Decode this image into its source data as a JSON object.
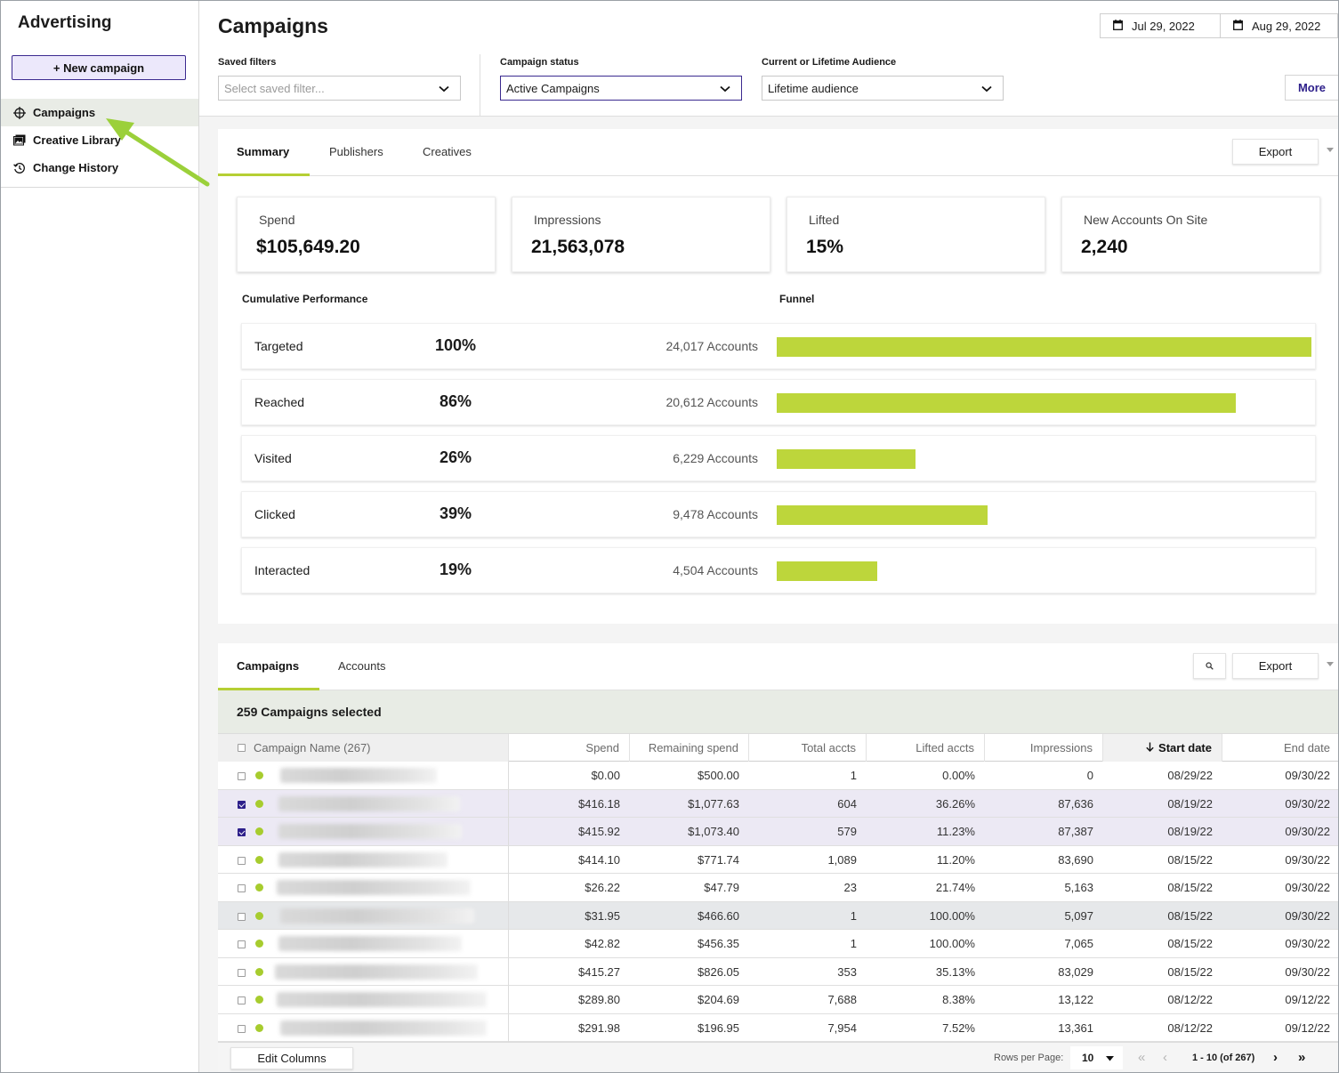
{
  "sidebar": {
    "brand": "Advertising",
    "new_campaign_label": "+ New campaign",
    "items": [
      {
        "label": "Campaigns",
        "icon": "crosshair-icon",
        "active": true
      },
      {
        "label": "Creative Library",
        "icon": "image-library-icon",
        "active": false
      },
      {
        "label": "Change History",
        "icon": "history-icon",
        "active": false
      }
    ]
  },
  "header": {
    "title": "Campaigns",
    "date_start": "Jul 29, 2022",
    "date_end": "Aug 29, 2022",
    "filters": {
      "saved_label": "Saved filters",
      "saved_placeholder": "Select saved filter...",
      "status_label": "Campaign status",
      "status_value": "Active Campaigns",
      "audience_label": "Current or Lifetime Audience",
      "audience_value": "Lifetime audience"
    },
    "more_label": "More"
  },
  "summary": {
    "tabs": [
      "Summary",
      "Publishers",
      "Creatives"
    ],
    "export_label": "Export",
    "stats": [
      {
        "label": "Spend",
        "value": "$105,649.20"
      },
      {
        "label": "Impressions",
        "value": "21,563,078"
      },
      {
        "label": "Lifted",
        "value": "15%"
      },
      {
        "label": "New Accounts On Site",
        "value": "2,240"
      }
    ],
    "cumulative_heading": "Cumulative Performance",
    "funnel_heading": "Funnel",
    "funnel": [
      {
        "label": "Targeted",
        "pct": "100%",
        "accounts": "24,017 Accounts",
        "count": 24017
      },
      {
        "label": "Reached",
        "pct": "86%",
        "accounts": "20,612 Accounts",
        "count": 20612
      },
      {
        "label": "Visited",
        "pct": "26%",
        "accounts": "6,229 Accounts",
        "count": 6229
      },
      {
        "label": "Clicked",
        "pct": "39%",
        "accounts": "9,478 Accounts",
        "count": 9478
      },
      {
        "label": "Interacted",
        "pct": "19%",
        "accounts": "4,504 Accounts",
        "count": 4504
      }
    ],
    "bar_color": "#bdd63b"
  },
  "table": {
    "tabs": [
      "Campaigns",
      "Accounts"
    ],
    "export_label": "Export",
    "selected_text": "259 Campaigns selected",
    "columns": [
      "Campaign Name (267)",
      "Spend",
      "Remaining spend",
      "Total accts",
      "Lifted accts",
      "Impressions",
      "Start date",
      "End date"
    ],
    "rows": [
      {
        "checked": false,
        "spend": "$0.00",
        "remaining": "$500.00",
        "total": "1",
        "lifted": "0.00%",
        "impressions": "0",
        "start": "08/29/22",
        "end": "09/30/22"
      },
      {
        "checked": true,
        "spend": "$416.18",
        "remaining": "$1,077.63",
        "total": "604",
        "lifted": "36.26%",
        "impressions": "87,636",
        "start": "08/19/22",
        "end": "09/30/22"
      },
      {
        "checked": true,
        "spend": "$415.92",
        "remaining": "$1,073.40",
        "total": "579",
        "lifted": "11.23%",
        "impressions": "87,387",
        "start": "08/19/22",
        "end": "09/30/22"
      },
      {
        "checked": false,
        "spend": "$414.10",
        "remaining": "$771.74",
        "total": "1,089",
        "lifted": "11.20%",
        "impressions": "83,690",
        "start": "08/15/22",
        "end": "09/30/22"
      },
      {
        "checked": false,
        "spend": "$26.22",
        "remaining": "$47.79",
        "total": "23",
        "lifted": "21.74%",
        "impressions": "5,163",
        "start": "08/15/22",
        "end": "09/30/22"
      },
      {
        "checked": false,
        "spend": "$31.95",
        "remaining": "$466.60",
        "total": "1",
        "lifted": "100.00%",
        "impressions": "5,097",
        "start": "08/15/22",
        "end": "09/30/22"
      },
      {
        "checked": false,
        "spend": "$42.82",
        "remaining": "$456.35",
        "total": "1",
        "lifted": "100.00%",
        "impressions": "7,065",
        "start": "08/15/22",
        "end": "09/30/22"
      },
      {
        "checked": false,
        "spend": "$415.27",
        "remaining": "$826.05",
        "total": "353",
        "lifted": "35.13%",
        "impressions": "83,029",
        "start": "08/15/22",
        "end": "09/30/22"
      },
      {
        "checked": false,
        "spend": "$289.80",
        "remaining": "$204.69",
        "total": "7,688",
        "lifted": "8.38%",
        "impressions": "13,122",
        "start": "08/12/22",
        "end": "09/12/22"
      },
      {
        "checked": false,
        "spend": "$291.98",
        "remaining": "$196.95",
        "total": "7,954",
        "lifted": "7.52%",
        "impressions": "13,361",
        "start": "08/12/22",
        "end": "09/12/22"
      }
    ],
    "edit_columns_label": "Edit Columns",
    "rows_per_page_label": "Rows per Page:",
    "rows_per_page_value": "10",
    "page_range": "1 - 10 (of 267)"
  },
  "colors": {
    "accent_purple": "#2d1f8a",
    "accent_green": "#b5cf34",
    "arrow_green": "#9bd03a"
  }
}
